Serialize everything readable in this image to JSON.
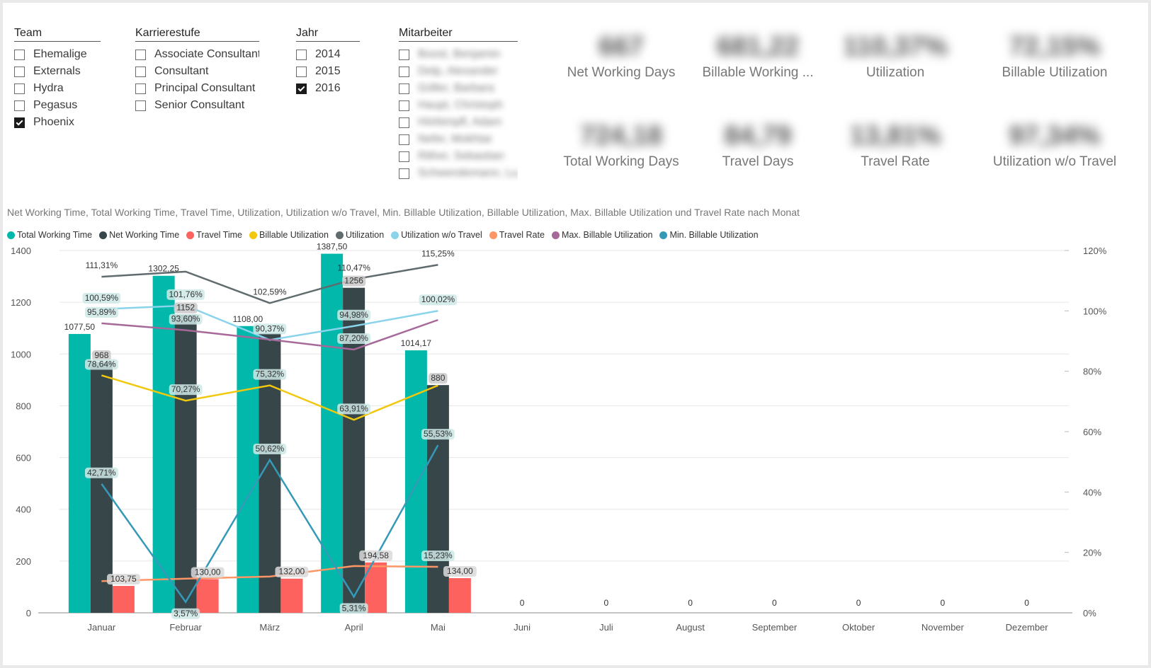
{
  "slicers": [
    {
      "id": "team",
      "header": "Team",
      "items": [
        {
          "label": "Ehemalige",
          "checked": false
        },
        {
          "label": "Externals",
          "checked": false
        },
        {
          "label": "Hydra",
          "checked": false
        },
        {
          "label": "Pegasus",
          "checked": false
        },
        {
          "label": "Phoenix",
          "checked": true
        }
      ]
    },
    {
      "id": "karrierestufe",
      "header": "Karrierestufe",
      "items": [
        {
          "label": "Associate Consultant",
          "checked": false
        },
        {
          "label": "Consultant",
          "checked": false
        },
        {
          "label": "Principal Consultant",
          "checked": false
        },
        {
          "label": "Senior Consultant",
          "checked": false
        }
      ]
    },
    {
      "id": "jahr",
      "header": "Jahr",
      "items": [
        {
          "label": "2014",
          "checked": false
        },
        {
          "label": "2015",
          "checked": false
        },
        {
          "label": "2016",
          "checked": true
        }
      ]
    },
    {
      "id": "mitarbeiter",
      "header": "Mitarbeiter",
      "items": [
        {
          "label": "Boost, Benjamin",
          "checked": false
        },
        {
          "label": "Delp, Alexander",
          "checked": false
        },
        {
          "label": "Göller, Barbara",
          "checked": false
        },
        {
          "label": "Haupt, Christoph",
          "checked": false
        },
        {
          "label": "Hörbimpfl, Adam",
          "checked": false
        },
        {
          "label": "Nefer, Mokhtar",
          "checked": false
        },
        {
          "label": "Rither, Sebastian",
          "checked": false
        },
        {
          "label": "Schwendemann, Lu...",
          "checked": false
        }
      ]
    }
  ],
  "cards": [
    {
      "label": "Net Working Days",
      "value": "667"
    },
    {
      "label": "Billable Working ...",
      "value": "681,22"
    },
    {
      "label": "Utilization",
      "value": "110,37%"
    },
    {
      "label": "Billable Utilization",
      "value": "72,15%"
    },
    {
      "label": "Total Working Days",
      "value": "724,18"
    },
    {
      "label": "Travel Days",
      "value": "84,79"
    },
    {
      "label": "Travel Rate",
      "value": "13,81%"
    },
    {
      "label": "Utilization w/o Travel",
      "value": "97,34%"
    }
  ],
  "chart_data": {
    "type": "bar",
    "title": "Net Working Time, Total Working Time, Travel Time, Utilization, Utilization w/o Travel, Min. Billable Utilization, Billable Utilization, Max. Billable Utilization und Travel Rate nach Monat",
    "categories": [
      "Januar",
      "Februar",
      "März",
      "April",
      "Mai",
      "Juni",
      "Juli",
      "August",
      "September",
      "Oktober",
      "November",
      "Dezember"
    ],
    "ylim": [
      0,
      1400
    ],
    "y2lim": [
      0,
      120
    ],
    "yticks": [
      "0",
      "200",
      "400",
      "600",
      "800",
      "1000",
      "1200",
      "1400"
    ],
    "y2ticks": [
      "0%",
      "20%",
      "40%",
      "60%",
      "80%",
      "100%",
      "120%"
    ],
    "legend_position": "top-left",
    "bar_series": [
      {
        "name": "Total Working Time",
        "color": "#01b8aa",
        "values": [
          1077.5,
          1302.25,
          1108,
          1387.5,
          1014.17,
          0,
          0,
          0,
          0,
          0,
          0,
          0
        ],
        "labels": [
          "1077,50",
          "1302,25",
          "1108,00",
          "1387,50",
          "1014,17",
          "0",
          "0",
          "0",
          "0",
          "0",
          "0",
          "0"
        ]
      },
      {
        "name": "Net Working Time",
        "color": "#374649",
        "values": [
          968,
          1152,
          1080,
          1256,
          880,
          null,
          null,
          null,
          null,
          null,
          null,
          null
        ],
        "labels": [
          "968",
          "1152",
          "",
          "1256",
          "880",
          "",
          "",
          "",
          "",
          "",
          "",
          ""
        ]
      },
      {
        "name": "Travel Time",
        "color": "#fd625e",
        "values": [
          103.75,
          130,
          132,
          194.58,
          134,
          null,
          null,
          null,
          null,
          null,
          null,
          null
        ],
        "labels": [
          "103,75",
          "130,00",
          "132,00",
          "194,58",
          "134,00",
          "",
          "",
          "",
          "",
          "",
          "",
          ""
        ]
      }
    ],
    "line_series": [
      {
        "name": "Billable Utilization",
        "color": "#f2c80f",
        "values": [
          78.64,
          70.27,
          75.32,
          63.91,
          75.32
        ],
        "labels": [
          "78,64%",
          "70,27%",
          "75,32%",
          "63,91%",
          ""
        ]
      },
      {
        "name": "Utilization",
        "color": "#5f6b6d",
        "values": [
          111.31,
          113,
          102.59,
          110.47,
          115.25
        ],
        "labels": [
          "111,31%",
          "",
          "102,59%",
          "110,47%",
          "115,25%"
        ]
      },
      {
        "name": "Utilization w/o Travel",
        "color": "#8ad4eb",
        "values": [
          100.59,
          101.76,
          90.37,
          94.98,
          100.02
        ],
        "labels": [
          "100,59%",
          "101,76%",
          "90,37%",
          "94,98%",
          "100,02%"
        ]
      },
      {
        "name": "Travel Rate",
        "color": "#fe9666",
        "values": [
          10.5,
          11.3,
          12,
          15.5,
          15.23
        ],
        "labels": [
          "",
          "",
          "",
          "",
          "15,23%"
        ]
      },
      {
        "name": "Max. Billable Utilization",
        "color": "#a66999",
        "values": [
          95.89,
          93.6,
          90.5,
          87.2,
          97
        ],
        "labels": [
          "95,89%",
          "93,60%",
          "",
          "87,20%",
          ""
        ]
      },
      {
        "name": "Min. Billable Utilization",
        "color": "#3599b8",
        "values": [
          42.71,
          3.57,
          50.62,
          5.31,
          55.53
        ],
        "labels": [
          "42,71%",
          "3,57%",
          "50,62%",
          "5,31%",
          "55,53%"
        ]
      }
    ]
  }
}
